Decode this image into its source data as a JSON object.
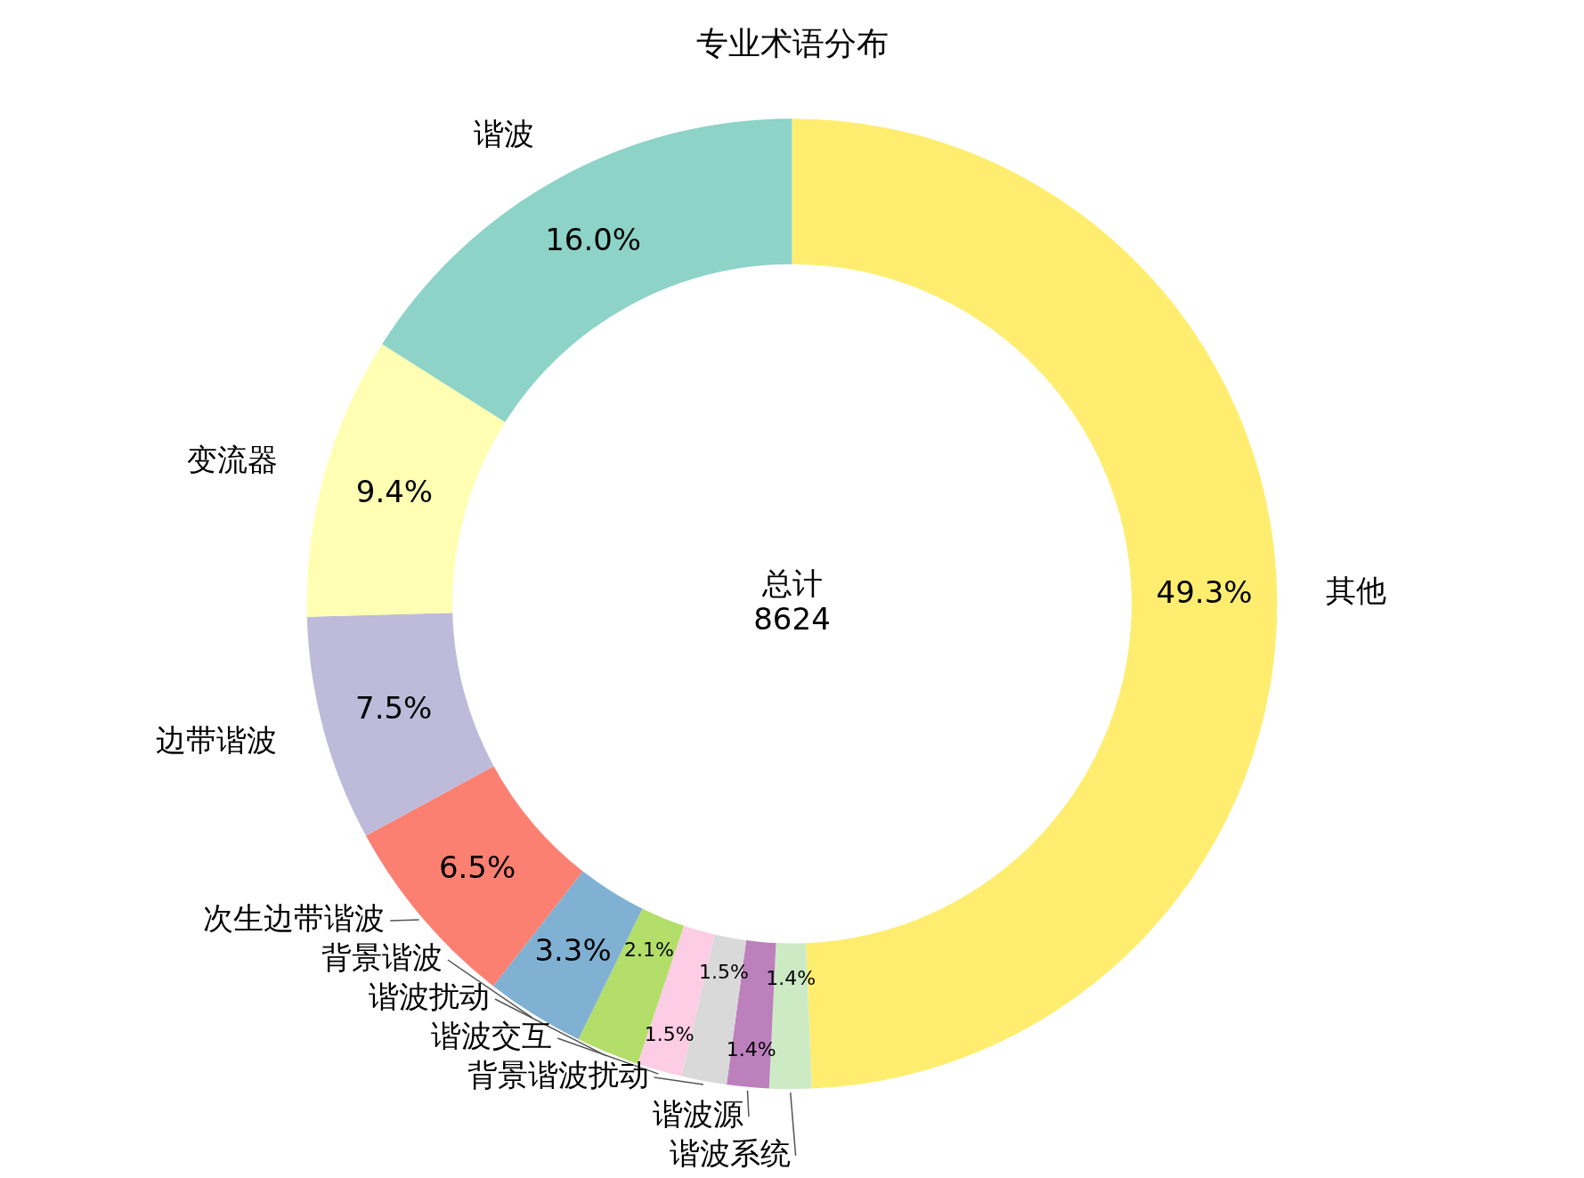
{
  "chart_data": {
    "type": "donut",
    "title": "专业术语分布",
    "categories": [
      "谐波",
      "变流器",
      "边带谐波",
      "次生边带谐波",
      "背景谐波",
      "谐波扰动",
      "谐波交互",
      "背景谐波扰动",
      "谐波源",
      "谐波系统",
      "其他"
    ],
    "values": [
      16.0,
      9.4,
      7.5,
      6.5,
      3.3,
      2.1,
      1.5,
      1.5,
      1.4,
      1.4,
      49.3
    ],
    "colors": [
      "#8dd3c7",
      "#ffffb3",
      "#bebada",
      "#fb8072",
      "#80b1d3",
      "#b3de69",
      "#fccde5",
      "#d9d9d9",
      "#bc80bd",
      "#ccebc5",
      "#ffed6f"
    ],
    "value_labels": [
      "16.0%",
      "9.4%",
      "7.5%",
      "6.5%",
      "3.3%",
      "2.1%",
      "1.5%",
      "1.5%",
      "1.4%",
      "1.4%",
      "49.3%"
    ],
    "annotations": [
      "总计\n8624"
    ],
    "legend": false
  }
}
